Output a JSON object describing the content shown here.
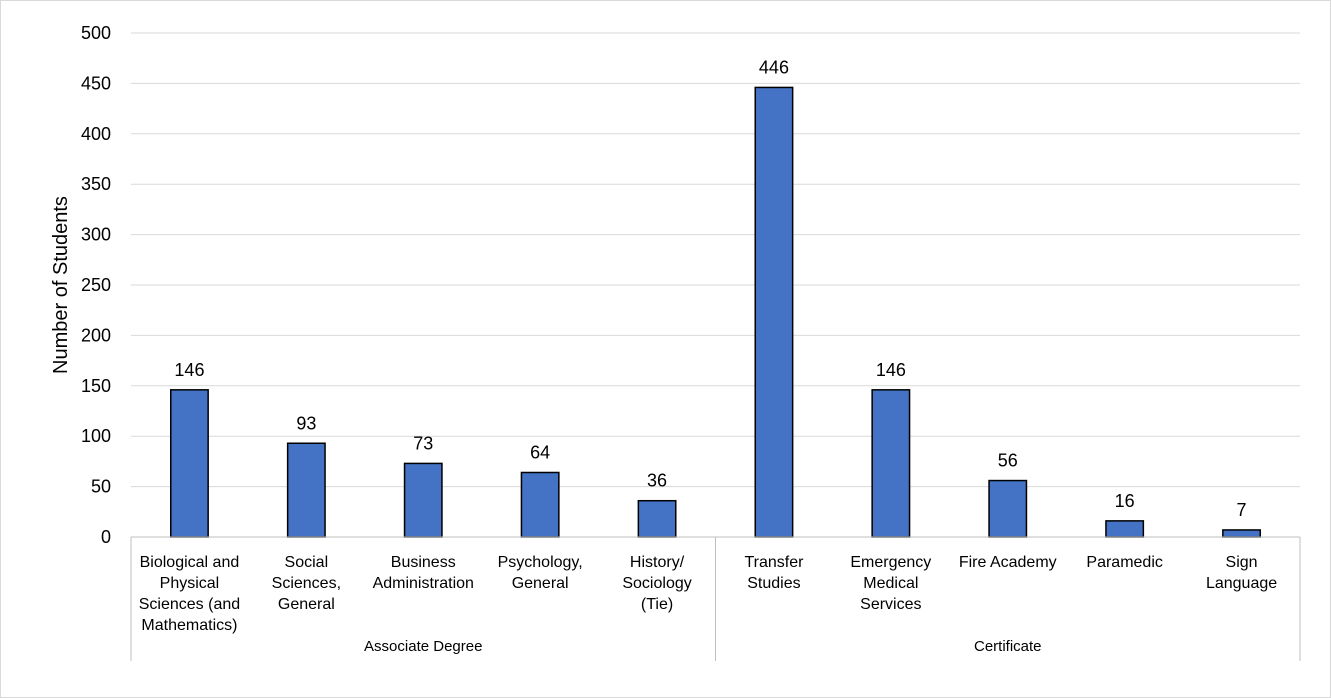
{
  "chart_data": {
    "type": "bar",
    "title": "",
    "xlabel": "",
    "ylabel": "Number of Students",
    "ylim": [
      0,
      500
    ],
    "ytick_step": 50,
    "grid": true,
    "colors": {
      "bar": "#4472C4",
      "bar_edge": "#000000",
      "grid": "#d9d9d9",
      "axis": "#bfbfbf"
    },
    "groups": [
      {
        "name": "Associate Degree",
        "categories": [
          [
            "Biological and",
            "Physical",
            "Sciences (and",
            "Mathematics)"
          ],
          [
            "Social",
            "Sciences,",
            "General"
          ],
          [
            "Business",
            "Administration"
          ],
          [
            "Psychology,",
            "General"
          ],
          [
            "History/",
            "Sociology",
            "(Tie)"
          ]
        ],
        "values": [
          146,
          93,
          73,
          64,
          36
        ]
      },
      {
        "name": "Certificate",
        "categories": [
          [
            "Transfer",
            "Studies"
          ],
          [
            "Emergency",
            "Medical",
            "Services"
          ],
          [
            "Fire Academy"
          ],
          [
            "Paramedic"
          ],
          [
            "Sign",
            "Language"
          ]
        ],
        "values": [
          446,
          146,
          56,
          16,
          7
        ]
      }
    ]
  }
}
